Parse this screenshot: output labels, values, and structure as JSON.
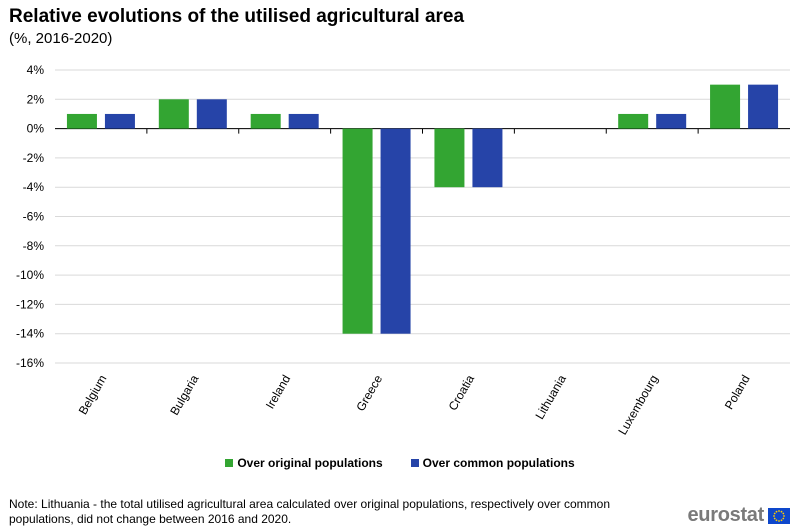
{
  "header": {
    "title": "Relative evolutions of the utilised agricultural area",
    "subtitle": "(%, 2016-2020)"
  },
  "chart_data": {
    "type": "bar",
    "categories": [
      "Belgium",
      "Bulgaria",
      "Ireland",
      "Greece",
      "Croatia",
      "Lithuania",
      "Luxembourg",
      "Poland"
    ],
    "series": [
      {
        "name": "Over original populations",
        "color": "#33a532",
        "values": [
          1,
          2,
          1,
          -14,
          -4,
          0,
          1,
          3
        ]
      },
      {
        "name": "Over common populations",
        "color": "#2644a8",
        "values": [
          1,
          2,
          1,
          -14,
          -4,
          0,
          1,
          3
        ]
      }
    ],
    "ylim": [
      -16,
      4
    ],
    "yticks": [
      4,
      2,
      0,
      -2,
      -4,
      -6,
      -8,
      -10,
      -12,
      -14,
      -16
    ],
    "ytick_suffix": "%",
    "grid": true,
    "legend_position": "bottom"
  },
  "footer": {
    "note": "Note: Lithuania - the total utilised agricultural area calculated over original populations, respectively over common populations, did not change between 2016 and 2020.",
    "logo_text": "eurostat"
  }
}
